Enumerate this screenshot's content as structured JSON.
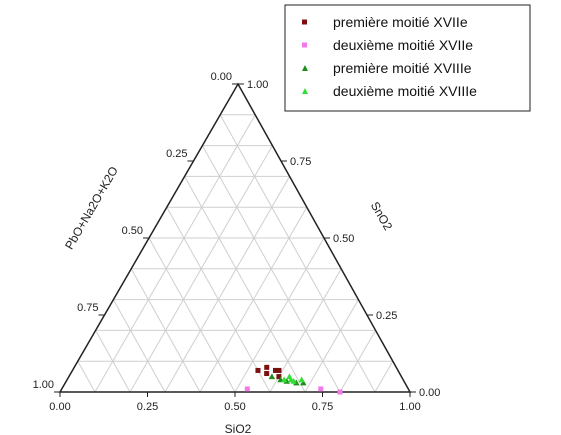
{
  "chart_data": {
    "type": "scatter",
    "subtype": "ternary",
    "axes": {
      "a": {
        "label": "SiO2",
        "ticks": [
          "0.00",
          "0.25",
          "0.50",
          "0.75",
          "1.00"
        ]
      },
      "b": {
        "label": "SnO2",
        "ticks": [
          "0.00",
          "0.25",
          "0.50",
          "0.75",
          "1.00"
        ]
      },
      "c": {
        "label": "PbO+Na2O+K2O",
        "ticks": [
          "0.00",
          "0.25",
          "0.50",
          "0.75",
          "1.00"
        ]
      }
    },
    "grid": true,
    "legend_position": "top-right",
    "series": [
      {
        "name": "première moitié XVIIe",
        "color": "#7a1010",
        "marker": "square",
        "points": [
          {
            "SiO2": 0.53,
            "SnO2": 0.07
          },
          {
            "SiO2": 0.55,
            "SnO2": 0.08
          },
          {
            "SiO2": 0.56,
            "SnO2": 0.06
          },
          {
            "SiO2": 0.58,
            "SnO2": 0.07
          },
          {
            "SiO2": 0.6,
            "SnO2": 0.05
          },
          {
            "SiO2": 0.59,
            "SnO2": 0.07
          }
        ]
      },
      {
        "name": "deuxième moitié XVIIe",
        "color": "#f07ae8",
        "marker": "square",
        "points": [
          {
            "SiO2": 0.53,
            "SnO2": 0.01
          },
          {
            "SiO2": 0.74,
            "SnO2": 0.01
          },
          {
            "SiO2": 0.8,
            "SnO2": 0.0
          }
        ]
      },
      {
        "name": "première moitié XVIIIe",
        "color": "#1e8c1e",
        "marker": "triangle",
        "points": [
          {
            "SiO2": 0.58,
            "SnO2": 0.05
          },
          {
            "SiO2": 0.61,
            "SnO2": 0.04
          },
          {
            "SiO2": 0.63,
            "SnO2": 0.035
          },
          {
            "SiO2": 0.66,
            "SnO2": 0.03
          },
          {
            "SiO2": 0.68,
            "SnO2": 0.03
          }
        ]
      },
      {
        "name": "deuxième moitié XVIIIe",
        "color": "#33dd33",
        "marker": "triangle",
        "points": [
          {
            "SiO2": 0.62,
            "SnO2": 0.04
          },
          {
            "SiO2": 0.63,
            "SnO2": 0.05
          },
          {
            "SiO2": 0.64,
            "SnO2": 0.04
          },
          {
            "SiO2": 0.65,
            "SnO2": 0.035
          },
          {
            "SiO2": 0.67,
            "SnO2": 0.04
          }
        ]
      }
    ]
  }
}
